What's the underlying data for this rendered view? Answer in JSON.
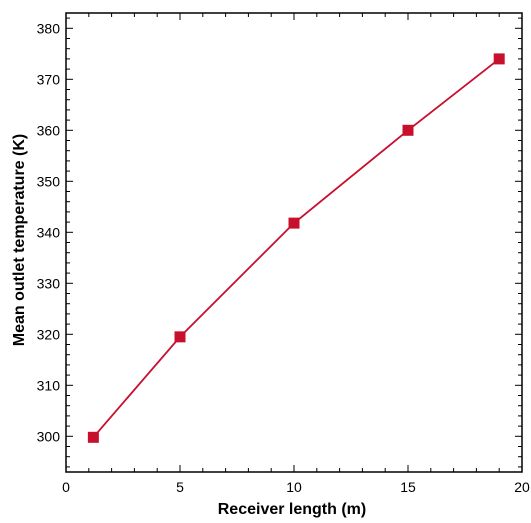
{
  "chart_data": {
    "type": "line",
    "xlabel": "Receiver length (m)",
    "ylabel": "Mean outlet temperature (K)",
    "xlim": [
      0,
      20
    ],
    "ylim": [
      293,
      383
    ],
    "x_ticks": [
      0,
      5,
      10,
      15,
      20
    ],
    "y_ticks": [
      300,
      310,
      320,
      330,
      340,
      350,
      360,
      370,
      380
    ],
    "grid": false,
    "legend": "none",
    "series": [
      {
        "x": [
          1.2,
          5,
          10,
          15,
          19
        ],
        "y": [
          299.8,
          319.5,
          341.8,
          360.0,
          374.0
        ],
        "color": "#c8102e",
        "marker": "square"
      }
    ]
  }
}
